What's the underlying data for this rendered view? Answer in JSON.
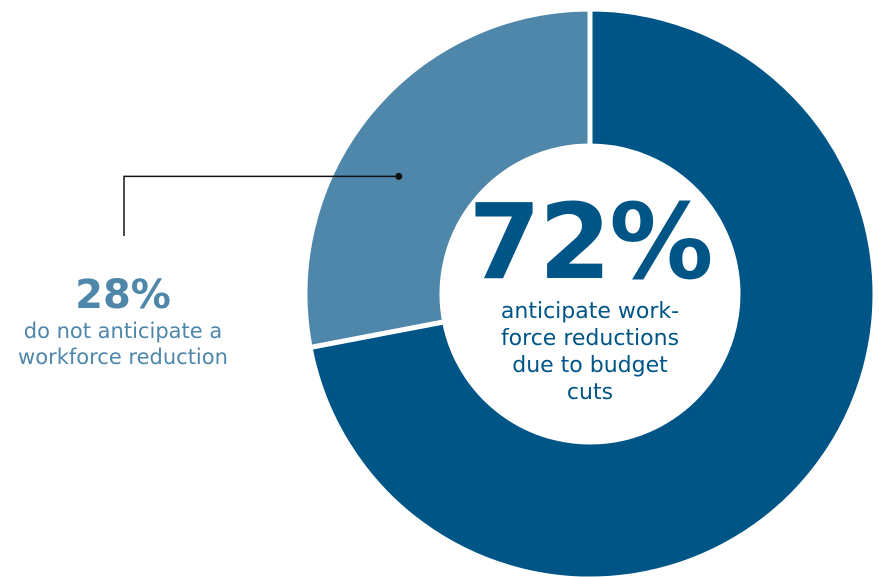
{
  "chart_data": {
    "type": "pie",
    "variant": "donut",
    "slices": [
      {
        "label": "anticipate workforce reductions due to budget cuts",
        "value": 72,
        "color": "#005587"
      },
      {
        "label": "do not anticipate a workforce reduction",
        "value": 28,
        "color": "#4e87aa"
      }
    ],
    "legend": "none"
  },
  "labels": {
    "main_pct": "72%",
    "main_desc": "anticipate work-force reductions due to budget cuts",
    "minor_pct": "28%",
    "minor_desc": "do not anticipate a workforce reduction"
  }
}
